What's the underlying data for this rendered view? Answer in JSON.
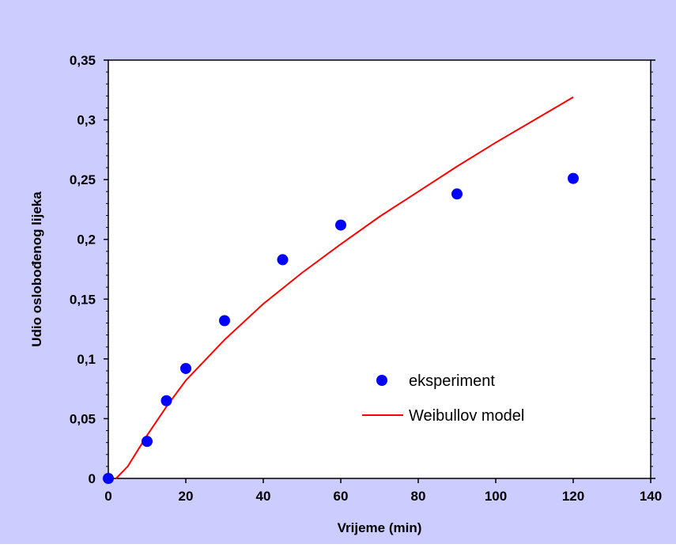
{
  "chart_data": {
    "type": "scatter",
    "title": "",
    "xlabel": "Vrijeme (min)",
    "ylabel": "Udio oslobođenog lijeka",
    "xlim": [
      0,
      140
    ],
    "ylim": [
      0,
      0.35
    ],
    "x_ticks": [
      0,
      20,
      40,
      60,
      80,
      100,
      120,
      140
    ],
    "y_ticks": [
      0,
      0.05,
      0.1,
      0.15,
      0.2,
      0.25,
      0.3,
      0.35
    ],
    "x_tick_labels": [
      "0",
      "20",
      "40",
      "60",
      "80",
      "100",
      "120",
      "140"
    ],
    "y_tick_labels": [
      "0",
      "0,05",
      "0,1",
      "0,15",
      "0,2",
      "0,25",
      "0,3",
      "0,35"
    ],
    "grid": false,
    "legend_position": "center-right",
    "series": [
      {
        "name": "eksperiment",
        "kind": "scatter",
        "color": "#0000ff",
        "x": [
          0,
          10,
          15,
          20,
          30,
          45,
          60,
          90,
          120
        ],
        "y": [
          0,
          0.031,
          0.065,
          0.092,
          0.132,
          0.183,
          0.212,
          0.238,
          0.251
        ]
      },
      {
        "name": "Weibullov model",
        "kind": "line",
        "color": "#ff0000",
        "x": [
          2,
          5,
          10,
          15,
          20,
          30,
          40,
          50,
          60,
          70,
          80,
          90,
          100,
          110,
          120
        ],
        "y": [
          0,
          0.01,
          0.036,
          0.06,
          0.082,
          0.116,
          0.146,
          0.172,
          0.196,
          0.219,
          0.24,
          0.261,
          0.281,
          0.3,
          0.319
        ]
      }
    ]
  },
  "colors": {
    "outer_background": "#ccccff",
    "plot_background": "#ffffff",
    "axis": "#000000"
  }
}
